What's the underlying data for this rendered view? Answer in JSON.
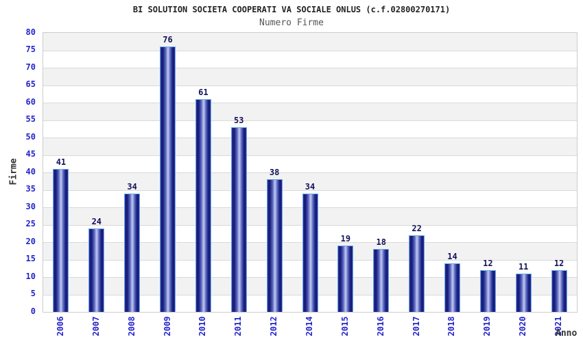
{
  "header": {
    "title": "BI SOLUTION SOCIETA COOPERATI VA SOCIALE ONLUS (c.f.02800270171)",
    "subtitle": "Numero Firme"
  },
  "chart_data": {
    "type": "bar",
    "title": "BI SOLUTION SOCIETA COOPERATI VA SOCIALE ONLUS (c.f.02800270171)",
    "subtitle": "Numero Firme",
    "categories": [
      "2006",
      "2007",
      "2008",
      "2009",
      "2010",
      "2011",
      "2012",
      "2014",
      "2015",
      "2016",
      "2017",
      "2018",
      "2019",
      "2020",
      "2021"
    ],
    "values": [
      41,
      24,
      34,
      76,
      61,
      53,
      38,
      34,
      19,
      18,
      22,
      14,
      12,
      11,
      12
    ],
    "xlabel": "Anno",
    "ylabel": "Firme",
    "ylim": [
      0,
      80
    ],
    "ytick_step": 5,
    "grid": "horizontal-bands",
    "legend": "none",
    "value_labels": "above-bars",
    "colors": {
      "bar_dark": "#171b75",
      "bar_light_center": "#c4cbf0",
      "bar_border": "#68a7e7",
      "axis_tick_label": "#2323cc",
      "value_label": "#13135c",
      "band_gray": "#f2f2f2",
      "band_white": "#ffffff",
      "gridline": "#d9d9d9",
      "plot_border": "#cccccc",
      "title_color": "#222222",
      "subtitle_color": "#555555"
    }
  }
}
